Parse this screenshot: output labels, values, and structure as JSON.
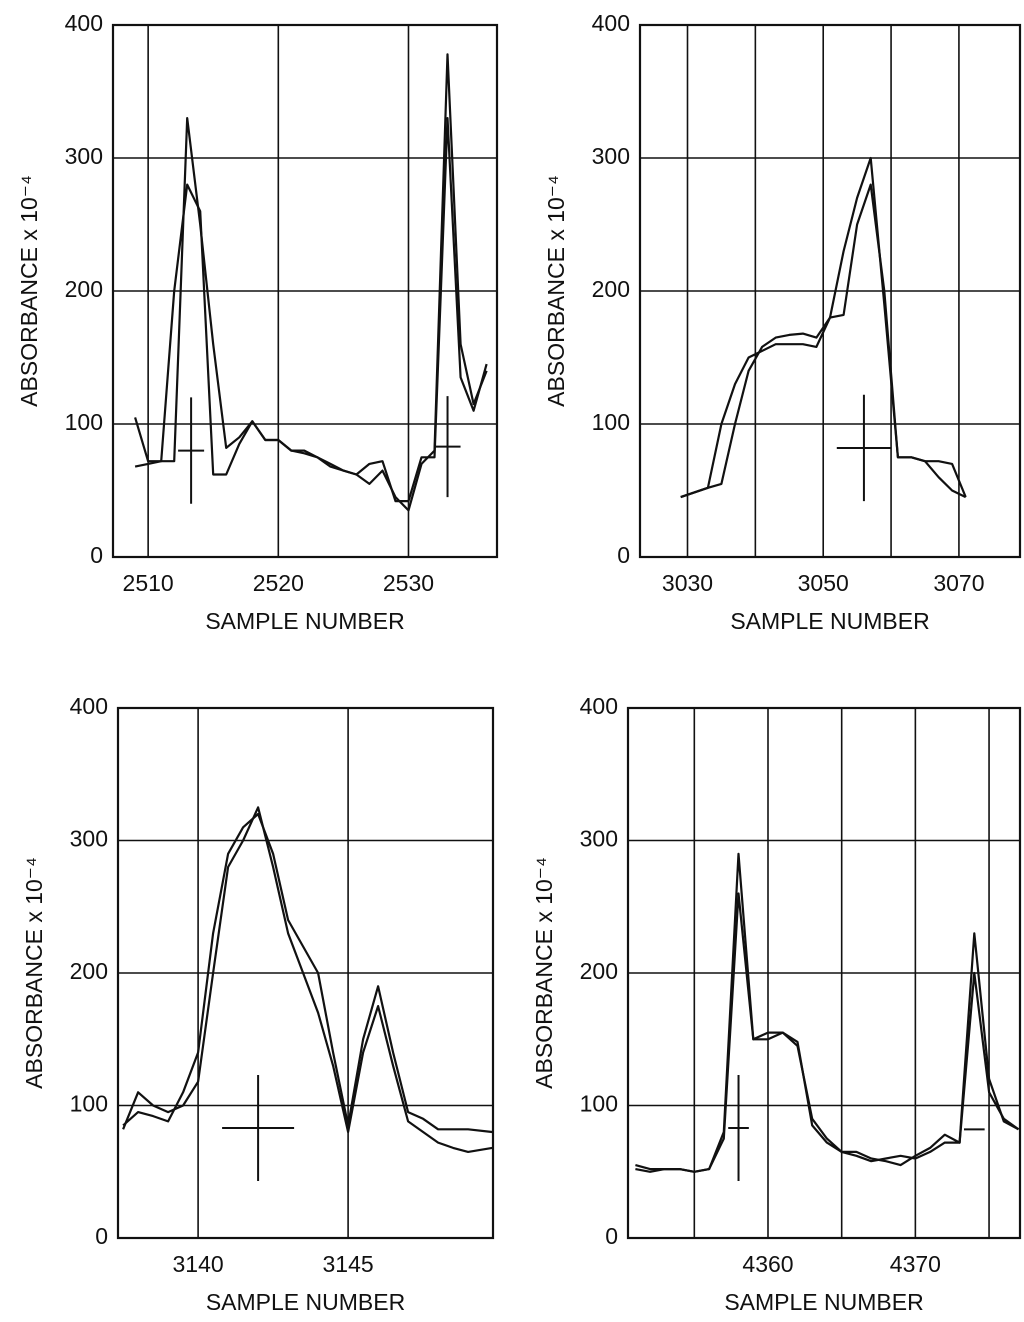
{
  "chart_data": [
    {
      "type": "line",
      "x_label": "SAMPLE NUMBER",
      "y_label": "ABSORBANCE x 10⁻⁴",
      "xlim": [
        2507.3,
        2536.8
      ],
      "ylim": [
        0,
        400
      ],
      "xticks": [
        2510,
        2520,
        2530
      ],
      "yticks": [
        0,
        100,
        200,
        300,
        400
      ],
      "grid": true,
      "x": [
        2509,
        2510,
        2511,
        2512,
        2513,
        2514,
        2515,
        2516,
        2517,
        2518,
        2519,
        2520,
        2521,
        2522,
        2523,
        2524,
        2525,
        2526,
        2527,
        2528,
        2529,
        2530,
        2531,
        2532,
        2533,
        2534,
        2535,
        2536
      ],
      "series": [
        {
          "color": "#111111",
          "values": [
            105,
            72,
            72,
            72,
            330,
            250,
            160,
            82,
            90,
            102,
            88,
            88,
            80,
            80,
            75,
            70,
            65,
            62,
            55,
            65,
            45,
            35,
            70,
            80,
            378,
            160,
            115,
            140
          ]
        },
        {
          "color": "#111111",
          "values": [
            68,
            70,
            72,
            200,
            280,
            260,
            62,
            62,
            85,
            102,
            88,
            88,
            80,
            78,
            75,
            68,
            65,
            62,
            70,
            72,
            42,
            42,
            75,
            75,
            330,
            135,
            110,
            145
          ]
        }
      ],
      "crosshairs": [
        {
          "x": 2513.3,
          "y": 80,
          "xerr": 1,
          "yerr": 40
        },
        {
          "x": 2533,
          "y": 83,
          "xerr": 1,
          "yerr": 38
        }
      ]
    },
    {
      "type": "line",
      "x_label": "SAMPLE NUMBER",
      "y_label": "ABSORBANCE x 10⁻⁴",
      "xlim": [
        3023,
        3079
      ],
      "ylim": [
        0,
        400
      ],
      "xticks": [
        3030,
        3050,
        3070
      ],
      "xminor": [
        3040,
        3060
      ],
      "yticks": [
        0,
        100,
        200,
        300,
        400
      ],
      "grid": true,
      "x": [
        3029,
        3033,
        3035,
        3037,
        3039,
        3041,
        3043,
        3045,
        3047,
        3049,
        3051,
        3053,
        3055,
        3057,
        3059,
        3061,
        3063,
        3065,
        3067,
        3069,
        3071
      ],
      "series": [
        {
          "color": "#111111",
          "values": [
            45,
            52,
            100,
            130,
            150,
            155,
            160,
            160,
            160,
            158,
            180,
            230,
            270,
            300,
            190,
            75,
            75,
            72,
            60,
            50,
            45
          ]
        },
        {
          "color": "#111111",
          "values": [
            45,
            52,
            55,
            100,
            140,
            158,
            165,
            167,
            168,
            165,
            180,
            182,
            250,
            280,
            200,
            75,
            75,
            72,
            72,
            70,
            45
          ]
        }
      ],
      "crosshairs": [
        {
          "x": 3056,
          "y": 82,
          "xerr": 4,
          "yerr": 40
        }
      ]
    },
    {
      "type": "line",
      "x_label": "SAMPLE NUMBER",
      "y_label": "ABSORBANCE x 10⁻⁴",
      "xlim": [
        3137.33,
        3149.83
      ],
      "ylim": [
        0,
        400
      ],
      "xticks": [
        3140,
        3145
      ],
      "yticks": [
        0,
        100,
        200,
        300,
        400
      ],
      "grid": true,
      "x": [
        3137.5,
        3138,
        3138.5,
        3139,
        3139.5,
        3140,
        3140.5,
        3141,
        3141.5,
        3142,
        3142.5,
        3143,
        3143.5,
        3144,
        3144.5,
        3145,
        3145.5,
        3146,
        3146.5,
        3147,
        3147.5,
        3148,
        3148.5,
        3149,
        3149.8
      ],
      "series": [
        {
          "color": "#111111",
          "values": [
            85,
            95,
            92,
            88,
            110,
            140,
            230,
            290,
            310,
            320,
            290,
            240,
            220,
            200,
            140,
            85,
            150,
            190,
            140,
            95,
            90,
            82,
            82,
            82,
            80
          ]
        },
        {
          "color": "#111111",
          "values": [
            82,
            110,
            100,
            95,
            100,
            118,
            200,
            280,
            300,
            325,
            280,
            230,
            200,
            170,
            130,
            80,
            140,
            175,
            130,
            88,
            80,
            72,
            68,
            65,
            68
          ]
        }
      ],
      "crosshairs": [
        {
          "x": 3142,
          "y": 83,
          "xerr": 1.2,
          "yerr": 40
        }
      ]
    },
    {
      "type": "line",
      "x_label": "SAMPLE NUMBER",
      "y_label": "ABSORBANCE x 10⁻⁴",
      "xlim": [
        4350.5,
        4377.1
      ],
      "ylim": [
        0,
        400
      ],
      "xticks": [
        4360,
        4370
      ],
      "xminor": [
        4355,
        4365,
        4375
      ],
      "yticks": [
        0,
        100,
        200,
        300,
        400
      ],
      "grid": true,
      "x": [
        4351,
        4352,
        4353,
        4354,
        4355,
        4356,
        4357,
        4358,
        4359,
        4360,
        4361,
        4362,
        4363,
        4364,
        4365,
        4366,
        4367,
        4368,
        4369,
        4370,
        4371,
        4372,
        4373,
        4374,
        4375,
        4376,
        4377
      ],
      "series": [
        {
          "color": "#111111",
          "values": [
            55,
            52,
            52,
            52,
            50,
            52,
            80,
            290,
            150,
            150,
            155,
            145,
            90,
            75,
            65,
            65,
            60,
            58,
            55,
            62,
            68,
            78,
            72,
            230,
            120,
            88,
            82
          ]
        },
        {
          "color": "#111111",
          "values": [
            52,
            50,
            52,
            52,
            50,
            52,
            75,
            260,
            150,
            155,
            155,
            148,
            85,
            72,
            65,
            62,
            58,
            60,
            62,
            60,
            65,
            72,
            72,
            200,
            110,
            90,
            82
          ]
        }
      ],
      "crosshairs": [
        {
          "x": 4358,
          "y": 83,
          "xerr": 0.7,
          "yerr": 40
        },
        {
          "x": 4374,
          "y": 82,
          "xerr": 0.7,
          "yerr": 0
        }
      ]
    }
  ]
}
